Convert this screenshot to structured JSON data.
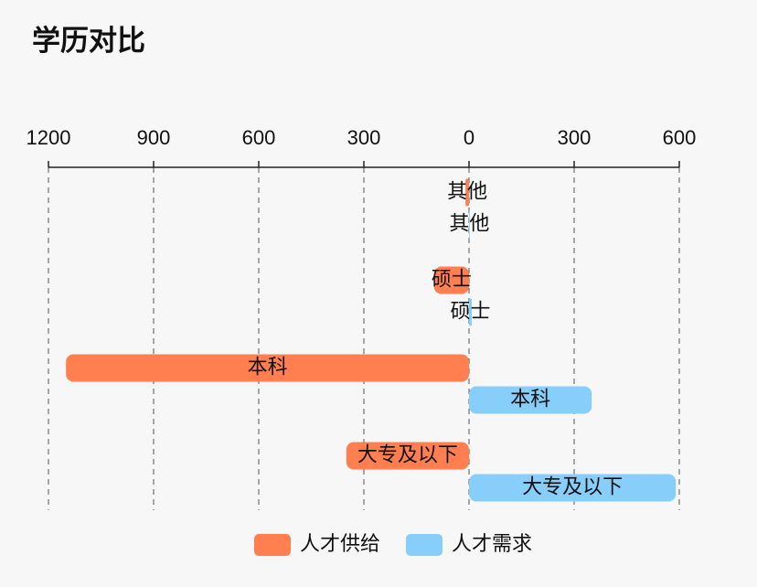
{
  "chart_data": {
    "type": "bar",
    "orientation": "horizontal",
    "title": "学历对比",
    "categories": [
      "其他",
      "硕士",
      "本科",
      "大专及以下"
    ],
    "series": [
      {
        "name": "人才供给",
        "color": "#ff7f50",
        "values": [
          -10,
          -100,
          -1150,
          -350
        ]
      },
      {
        "name": "人才需求",
        "color": "#87cefa",
        "values": [
          2,
          8,
          350,
          590
        ]
      }
    ],
    "xlim": [
      -1200,
      600
    ],
    "xticks": [
      {
        "value": -1200,
        "label": "1200"
      },
      {
        "value": -900,
        "label": "900"
      },
      {
        "value": -600,
        "label": "600"
      },
      {
        "value": -300,
        "label": "300"
      },
      0,
      300,
      600
    ],
    "grid": true,
    "legend": "bottom"
  }
}
